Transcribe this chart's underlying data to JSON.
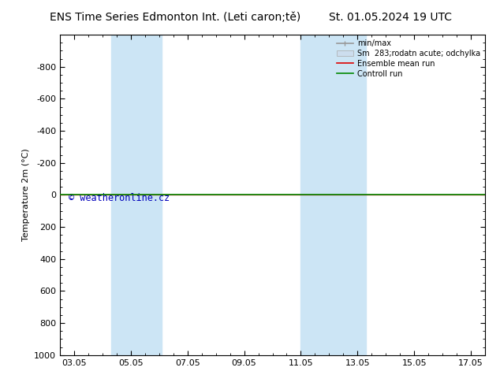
{
  "title": "ENS Time Series Edmonton Int. (Leti caron;tě)",
  "date_label": "St. 01.05.2024 19 UTC",
  "ylabel": "Temperature 2m (°C)",
  "ylim_top": -1000,
  "ylim_bottom": 1000,
  "yticks": [
    -800,
    -600,
    -400,
    -200,
    0,
    200,
    400,
    600,
    800,
    1000
  ],
  "xtick_labels": [
    "03.05",
    "05.05",
    "07.05",
    "09.05",
    "11.05",
    "13.05",
    "15.05",
    "17.05"
  ],
  "xtick_positions": [
    0,
    2,
    4,
    6,
    8,
    10,
    12,
    14
  ],
  "background_color": "#ffffff",
  "plot_bg_color": "#ffffff",
  "shaded_bands": [
    {
      "x_start": 1.3,
      "x_end": 2.0,
      "color": "#cce5f5"
    },
    {
      "x_start": 2.0,
      "x_end": 3.1,
      "color": "#cce5f5"
    },
    {
      "x_start": 8.0,
      "x_end": 9.3,
      "color": "#cce5f5"
    },
    {
      "x_start": 9.3,
      "x_end": 10.3,
      "color": "#cce5f5"
    }
  ],
  "horizontal_line_y": 0,
  "line_color_red": "#dd0000",
  "line_color_green": "#008800",
  "watermark_text": "© weatheronline.cz",
  "watermark_color": "#0000bb",
  "watermark_fontsize": 8.5,
  "legend_entries": [
    "min/max",
    "Sm  283;rodatn acute; odchylka",
    "Ensemble mean run",
    "Controll run"
  ],
  "legend_line_color": "#999999",
  "legend_fill_color": "#ccddee",
  "legend_red": "#dd0000",
  "legend_green": "#008800",
  "title_fontsize": 10,
  "date_fontsize": 10,
  "axis_fontsize": 8,
  "tick_fontsize": 8
}
